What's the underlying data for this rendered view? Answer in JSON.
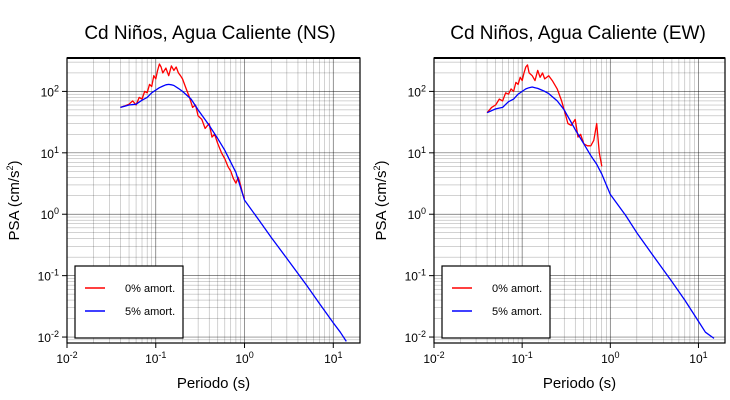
{
  "chart_data": [
    {
      "type": "line",
      "title": "Cd Niños, Agua Caliente (NS)",
      "xlabel": "Periodo (s)",
      "ylabel_main": "PSA (cm/s",
      "ylabel_sup": "2",
      "ylabel_close": ")",
      "xscale": "log",
      "yscale": "log",
      "xlim": [
        0.01,
        20
      ],
      "ylim": [
        0.008,
        350
      ],
      "grid": true,
      "legend_position": "bottom-left",
      "x_tick_labels": [
        {
          "base": "10",
          "exp": "-2",
          "value": 0.01
        },
        {
          "base": "10",
          "exp": "-1",
          "value": 0.1
        },
        {
          "base": "10",
          "exp": "0",
          "value": 1
        },
        {
          "base": "10",
          "exp": "1",
          "value": 10
        }
      ],
      "y_tick_labels": [
        {
          "base": "10",
          "exp": "2",
          "value": 100
        },
        {
          "base": "10",
          "exp": "1",
          "value": 10
        },
        {
          "base": "10",
          "exp": "0",
          "value": 1
        },
        {
          "base": "10",
          "exp": "-1",
          "value": 0.1
        },
        {
          "base": "10",
          "exp": "-2",
          "value": 0.01
        }
      ],
      "series": [
        {
          "name": "0% amort.",
          "color": "#ff0000",
          "x": [
            0.04,
            0.045,
            0.05,
            0.055,
            0.06,
            0.065,
            0.07,
            0.075,
            0.08,
            0.085,
            0.09,
            0.095,
            0.1,
            0.105,
            0.11,
            0.115,
            0.12,
            0.13,
            0.14,
            0.15,
            0.16,
            0.17,
            0.18,
            0.19,
            0.2,
            0.22,
            0.24,
            0.26,
            0.28,
            0.3,
            0.33,
            0.36,
            0.4,
            0.43,
            0.46,
            0.5,
            0.55,
            0.6,
            0.65,
            0.7,
            0.75,
            0.8,
            0.85,
            0.9,
            0.95,
            1.0
          ],
          "y": [
            55,
            58,
            62,
            70,
            60,
            80,
            75,
            100,
            95,
            130,
            120,
            180,
            160,
            220,
            280,
            250,
            200,
            240,
            180,
            260,
            220,
            250,
            200,
            180,
            160,
            110,
            80,
            55,
            60,
            40,
            35,
            25,
            30,
            18,
            20,
            14,
            10,
            8,
            6,
            5,
            3.8,
            3.2,
            4,
            3,
            2.2,
            1.8
          ]
        },
        {
          "name": "5% amort.",
          "color": "#0000ff",
          "x": [
            0.04,
            0.05,
            0.06,
            0.07,
            0.08,
            0.09,
            0.1,
            0.11,
            0.12,
            0.13,
            0.14,
            0.15,
            0.16,
            0.18,
            0.2,
            0.25,
            0.3,
            0.4,
            0.5,
            0.6,
            0.7,
            0.8,
            1.0,
            1.5,
            2,
            3,
            5,
            7,
            10,
            12,
            14
          ],
          "y": [
            55,
            60,
            62,
            72,
            80,
            95,
            105,
            115,
            122,
            128,
            130,
            128,
            125,
            112,
            100,
            75,
            50,
            28,
            17,
            11,
            7,
            4.8,
            1.7,
            0.75,
            0.42,
            0.19,
            0.07,
            0.035,
            0.017,
            0.012,
            0.0085
          ]
        }
      ]
    },
    {
      "type": "line",
      "title": "Cd Niños, Agua Caliente (EW)",
      "xlabel": "Periodo (s)",
      "ylabel_main": "PSA (cm/s",
      "ylabel_sup": "2",
      "ylabel_close": ")",
      "xscale": "log",
      "yscale": "log",
      "xlim": [
        0.01,
        20
      ],
      "ylim": [
        0.008,
        350
      ],
      "grid": true,
      "legend_position": "bottom-left",
      "x_tick_labels": [
        {
          "base": "10",
          "exp": "-2",
          "value": 0.01
        },
        {
          "base": "10",
          "exp": "-1",
          "value": 0.1
        },
        {
          "base": "10",
          "exp": "0",
          "value": 1
        },
        {
          "base": "10",
          "exp": "1",
          "value": 10
        }
      ],
      "y_tick_labels": [
        {
          "base": "10",
          "exp": "2",
          "value": 100
        },
        {
          "base": "10",
          "exp": "1",
          "value": 10
        },
        {
          "base": "10",
          "exp": "0",
          "value": 1
        },
        {
          "base": "10",
          "exp": "-1",
          "value": 0.1
        },
        {
          "base": "10",
          "exp": "-2",
          "value": 0.01
        }
      ],
      "series": [
        {
          "name": "0% amort.",
          "color": "#ff0000",
          "x": [
            0.04,
            0.045,
            0.05,
            0.055,
            0.06,
            0.065,
            0.07,
            0.075,
            0.08,
            0.085,
            0.09,
            0.095,
            0.1,
            0.105,
            0.11,
            0.115,
            0.12,
            0.13,
            0.14,
            0.15,
            0.16,
            0.17,
            0.18,
            0.2,
            0.22,
            0.25,
            0.28,
            0.3,
            0.33,
            0.36,
            0.4,
            0.43,
            0.46,
            0.5,
            0.55,
            0.6,
            0.65,
            0.7,
            0.75,
            0.8
          ],
          "y": [
            45,
            55,
            60,
            75,
            70,
            95,
            90,
            110,
            100,
            140,
            130,
            170,
            150,
            200,
            250,
            270,
            200,
            180,
            150,
            220,
            170,
            200,
            160,
            180,
            150,
            110,
            70,
            50,
            30,
            28,
            35,
            18,
            20,
            14,
            13,
            13,
            16,
            30,
            10,
            6
          ]
        },
        {
          "name": "5% amort.",
          "color": "#0000ff",
          "x": [
            0.04,
            0.05,
            0.06,
            0.07,
            0.08,
            0.09,
            0.1,
            0.11,
            0.12,
            0.13,
            0.14,
            0.15,
            0.16,
            0.18,
            0.2,
            0.25,
            0.3,
            0.4,
            0.5,
            0.6,
            0.7,
            0.8,
            1.0,
            1.5,
            2,
            3,
            5,
            7,
            10,
            12,
            15
          ],
          "y": [
            45,
            52,
            55,
            68,
            75,
            90,
            100,
            110,
            115,
            118,
            115,
            112,
            108,
            100,
            92,
            70,
            50,
            24,
            14,
            9,
            6.5,
            4.5,
            2.1,
            0.95,
            0.5,
            0.22,
            0.08,
            0.04,
            0.018,
            0.012,
            0.0095
          ]
        }
      ]
    }
  ]
}
